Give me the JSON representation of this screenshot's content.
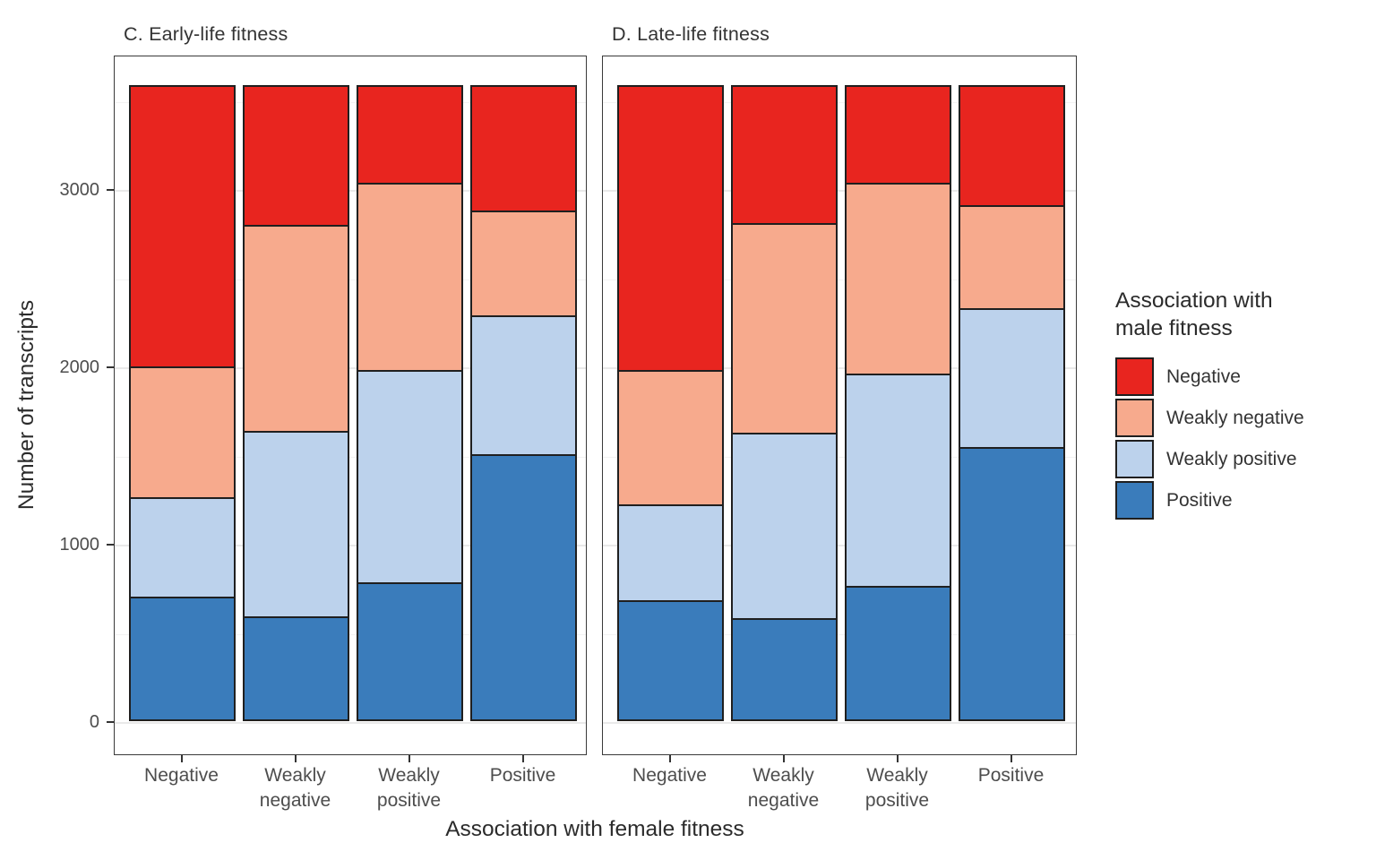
{
  "figure": {
    "background": "#ffffff",
    "panel_titles": {
      "early": "C. Early-life fitness",
      "late": "D. Late-life fitness"
    }
  },
  "axes": {
    "y_title": "Number of transcripts",
    "x_title": "Association with female fitness",
    "y_tick_labels": [
      "0",
      "1000",
      "2000",
      "3000"
    ],
    "y_tick_values": [
      0,
      1000,
      2000,
      3000
    ],
    "y_minor_tick_values": [
      500,
      1500,
      2500,
      3500
    ]
  },
  "legend": {
    "title": "Association with\nmale fitness",
    "items": [
      {
        "label": "Negative",
        "color": "#e8251f"
      },
      {
        "label": "Weakly negative",
        "color": "#f7aa8d"
      },
      {
        "label": "Weakly positive",
        "color": "#bcd2ec"
      },
      {
        "label": "Positive",
        "color": "#3a7cbb"
      }
    ]
  },
  "chart_data": {
    "type": "bar",
    "stacked": true,
    "title": "",
    "xlabel": "Association with female fitness",
    "ylabel": "Number of transcripts",
    "ylim": [
      0,
      3760
    ],
    "grid": true,
    "legend_position": "right",
    "legend_title": "Association with male fitness",
    "categories": [
      "Negative",
      "Weakly negative",
      "Weakly positive",
      "Positive"
    ],
    "category_label_lines": [
      [
        "Negative"
      ],
      [
        "Weakly",
        "negative"
      ],
      [
        "Weakly",
        "positive"
      ],
      [
        "Positive"
      ]
    ],
    "stack_order_bottom_to_top": [
      "Positive",
      "Weakly positive",
      "Weakly negative",
      "Negative"
    ],
    "bar_total": 3590,
    "panels": [
      {
        "id": "early",
        "title": "C. Early-life fitness",
        "series": [
          {
            "name": "Negative",
            "color": "#e8251f",
            "values": [
              1600,
              790,
              550,
              710
            ]
          },
          {
            "name": "Weakly negative",
            "color": "#f7aa8d",
            "values": [
              740,
              1170,
              1060,
              590
            ]
          },
          {
            "name": "Weakly positive",
            "color": "#bcd2ec",
            "values": [
              560,
              1050,
              1205,
              785
            ]
          },
          {
            "name": "Positive",
            "color": "#3a7cbb",
            "values": [
              690,
              580,
              775,
              1505
            ]
          }
        ]
      },
      {
        "id": "late",
        "title": "D. Late-life fitness",
        "series": [
          {
            "name": "Negative",
            "color": "#e8251f",
            "values": [
              1620,
              780,
              550,
              680
            ]
          },
          {
            "name": "Weakly negative",
            "color": "#f7aa8d",
            "values": [
              760,
              1190,
              1080,
              580
            ]
          },
          {
            "name": "Weakly positive",
            "color": "#bcd2ec",
            "values": [
              540,
              1050,
              1205,
              780
            ]
          },
          {
            "name": "Positive",
            "color": "#3a7cbb",
            "values": [
              670,
              570,
              755,
              1550
            ]
          }
        ]
      }
    ]
  }
}
